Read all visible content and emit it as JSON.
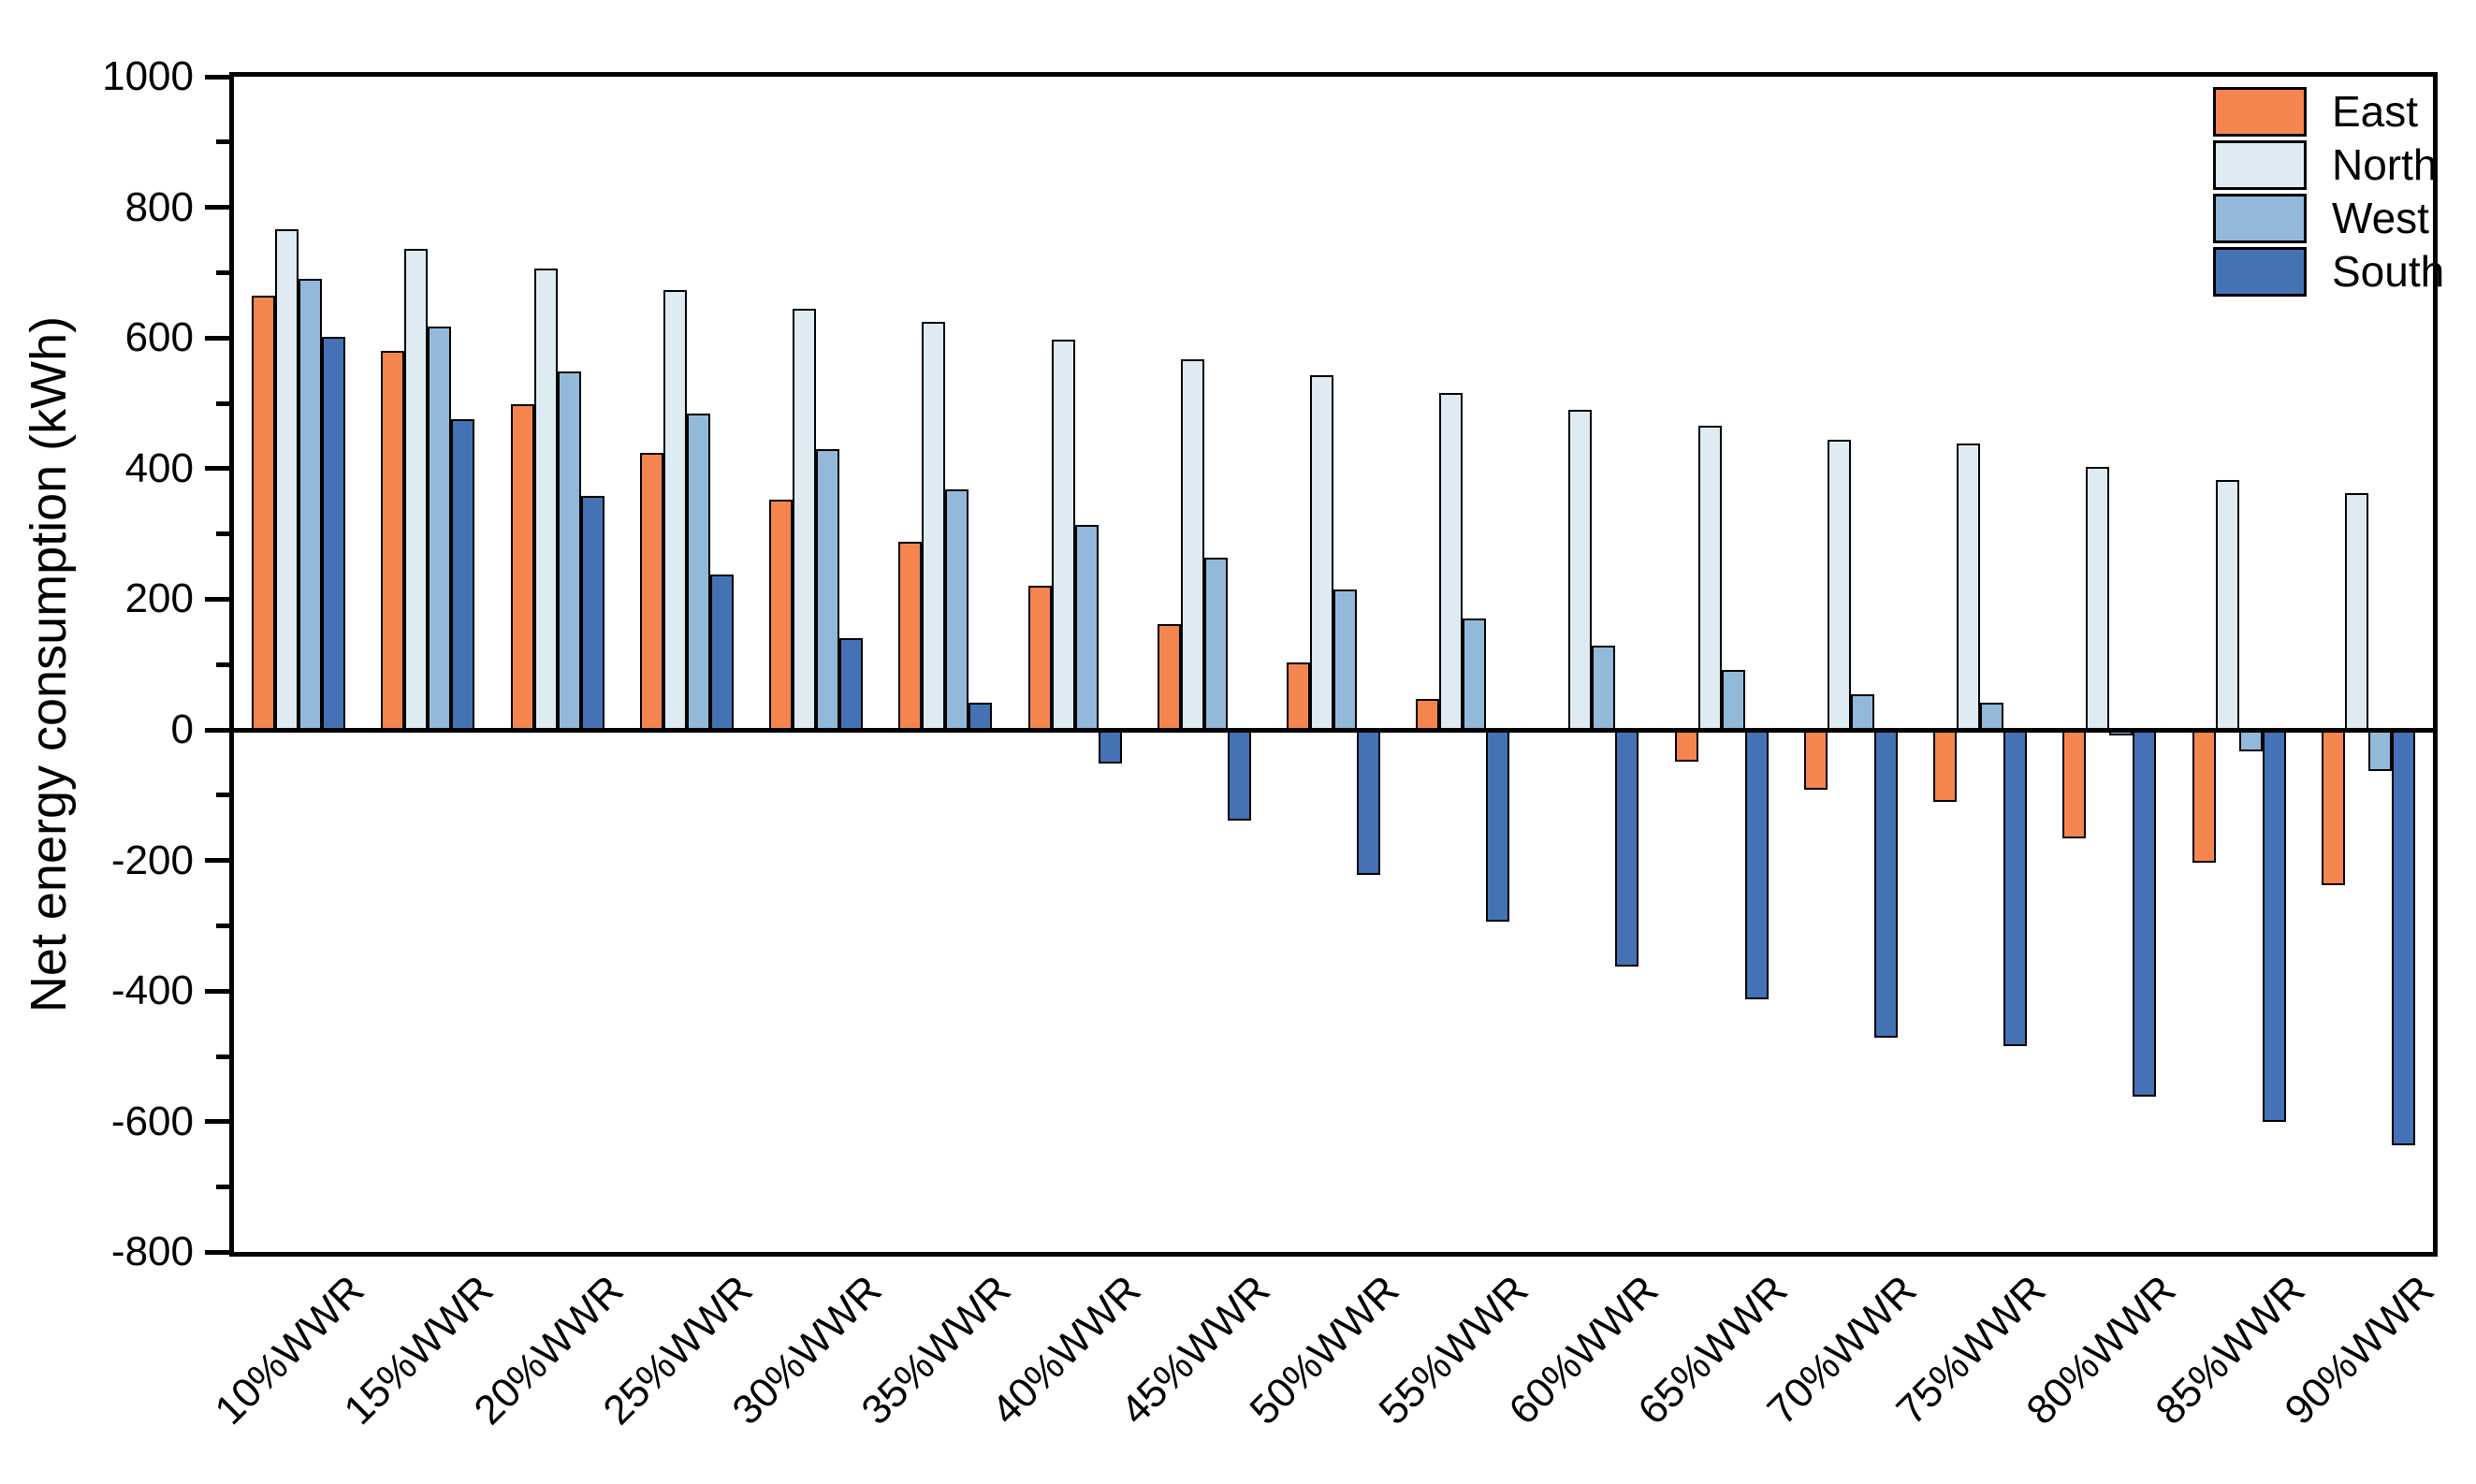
{
  "figure": {
    "background": "#ffffff",
    "axis_color": "#000000"
  },
  "chart_data": {
    "type": "bar",
    "title": "",
    "xlabel": "",
    "ylabel": "Net energy consumption (kWh)",
    "categories": [
      "10%WWR",
      "15%WWR",
      "20%WWR",
      "25%WWR",
      "30%WWR",
      "35%WWR",
      "40%WWR",
      "45%WWR",
      "50%WWR",
      "55%WWR",
      "60%WWR",
      "65%WWR",
      "70%WWR",
      "75%WWR",
      "80%WWR",
      "85%WWR",
      "90%WWR"
    ],
    "series": [
      {
        "name": "East",
        "color": "#F5854F",
        "values": [
          665,
          580,
          498,
          424,
          352,
          288,
          220,
          162,
          103,
          47,
          0,
          -48,
          -92,
          -110,
          -166,
          -203,
          -238
        ]
      },
      {
        "name": "North",
        "color": "#DEEBF2",
        "values": [
          766,
          736,
          706,
          673,
          645,
          625,
          597,
          568,
          543,
          516,
          490,
          466,
          444,
          438,
          402,
          382,
          363
        ]
      },
      {
        "name": "West",
        "color": "#92B9D9",
        "values": [
          690,
          617,
          548,
          484,
          430,
          368,
          314,
          264,
          215,
          170,
          129,
          92,
          55,
          42,
          -8,
          -33,
          -63
        ]
      },
      {
        "name": "South",
        "color": "#4472B4",
        "values": [
          602,
          476,
          358,
          238,
          140,
          42,
          -51,
          -139,
          -222,
          -293,
          -363,
          -413,
          -471,
          -484,
          -561,
          -600,
          -636
        ]
      }
    ],
    "ylim": [
      -800,
      1000
    ],
    "ytick_major_step": 200,
    "ytick_minor_step": 100,
    "yticklabels": [
      "1000",
      "800",
      "600",
      "400",
      "200",
      "0",
      "-200",
      "-400",
      "-600",
      "-800"
    ],
    "grid": false,
    "zero_baseline": true,
    "bar_outline_color": "#000000",
    "legend_position": "top-right-inside",
    "legend_entries": [
      "East",
      "North",
      "West",
      "South"
    ]
  }
}
